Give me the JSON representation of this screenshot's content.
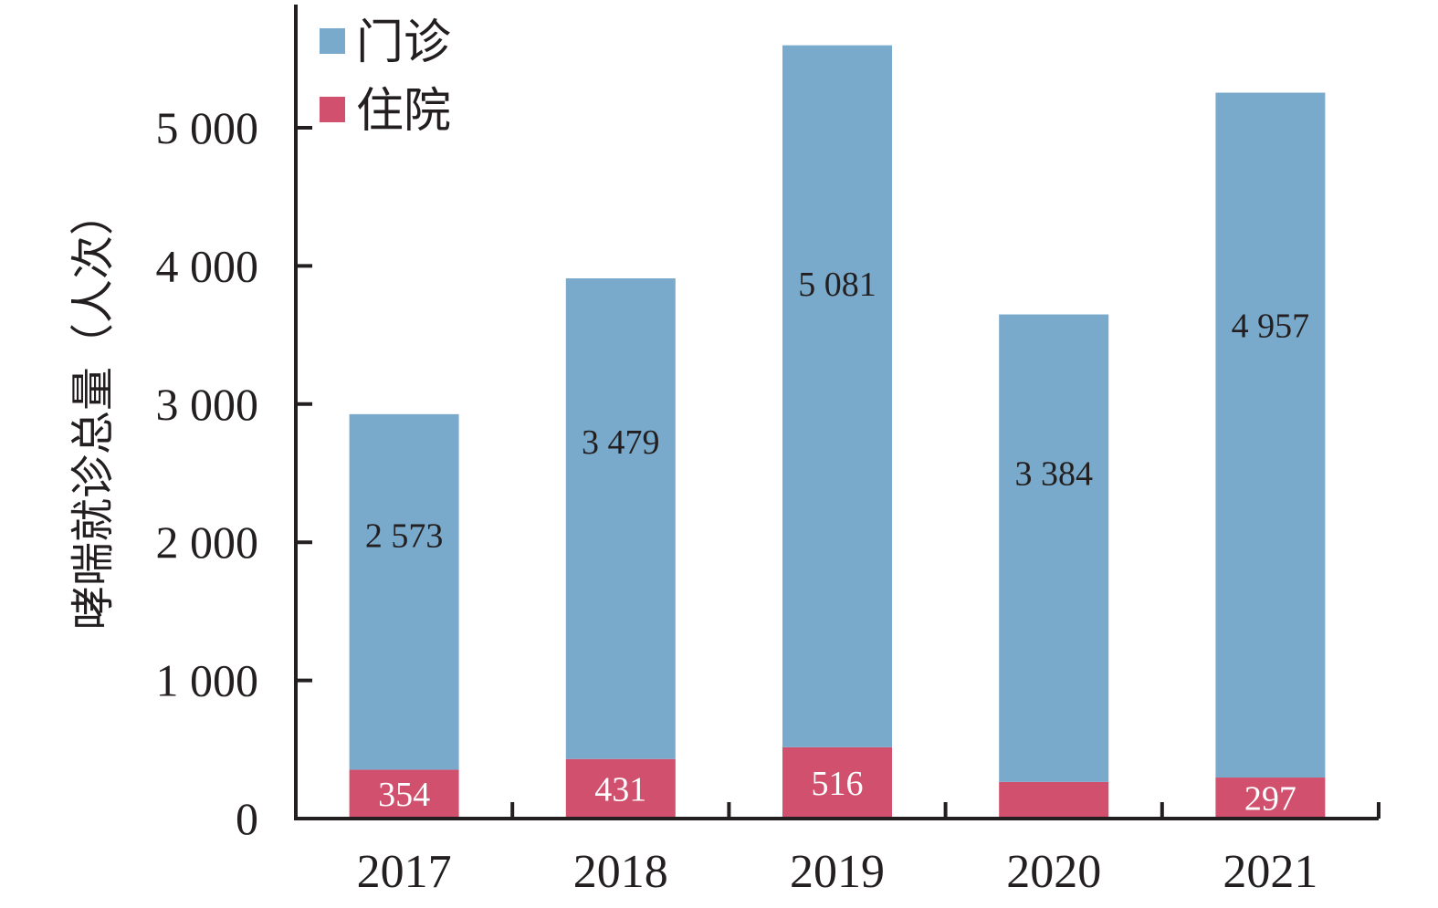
{
  "chart_data": {
    "type": "bar",
    "stacked": true,
    "ylabel": "哮喘就诊总量（人次）",
    "xlabel": "",
    "ylim": [
      0,
      5900
    ],
    "yticks": [
      0,
      1000,
      2000,
      3000,
      4000,
      5000
    ],
    "ytick_labels": [
      "0",
      "1 000",
      "2 000",
      "3 000",
      "4 000",
      "5 000"
    ],
    "categories": [
      "2017",
      "2018",
      "2019",
      "2020",
      "2021"
    ],
    "series": [
      {
        "name": "住院",
        "color": "#d0506e",
        "values": [
          354,
          431,
          516,
          265,
          297
        ],
        "labels": [
          "354",
          "431",
          "516",
          "",
          "297"
        ],
        "label_color": "#ffffff"
      },
      {
        "name": "门诊",
        "color": "#7aaacb",
        "values": [
          2573,
          3479,
          5081,
          3384,
          4957
        ],
        "labels": [
          "2 573",
          "3 479",
          "5 081",
          "3 384",
          "4 957"
        ],
        "label_color": "#231f20"
      }
    ],
    "legend": {
      "position": "top-left",
      "order": [
        "门诊",
        "住院"
      ]
    },
    "grid": false
  }
}
